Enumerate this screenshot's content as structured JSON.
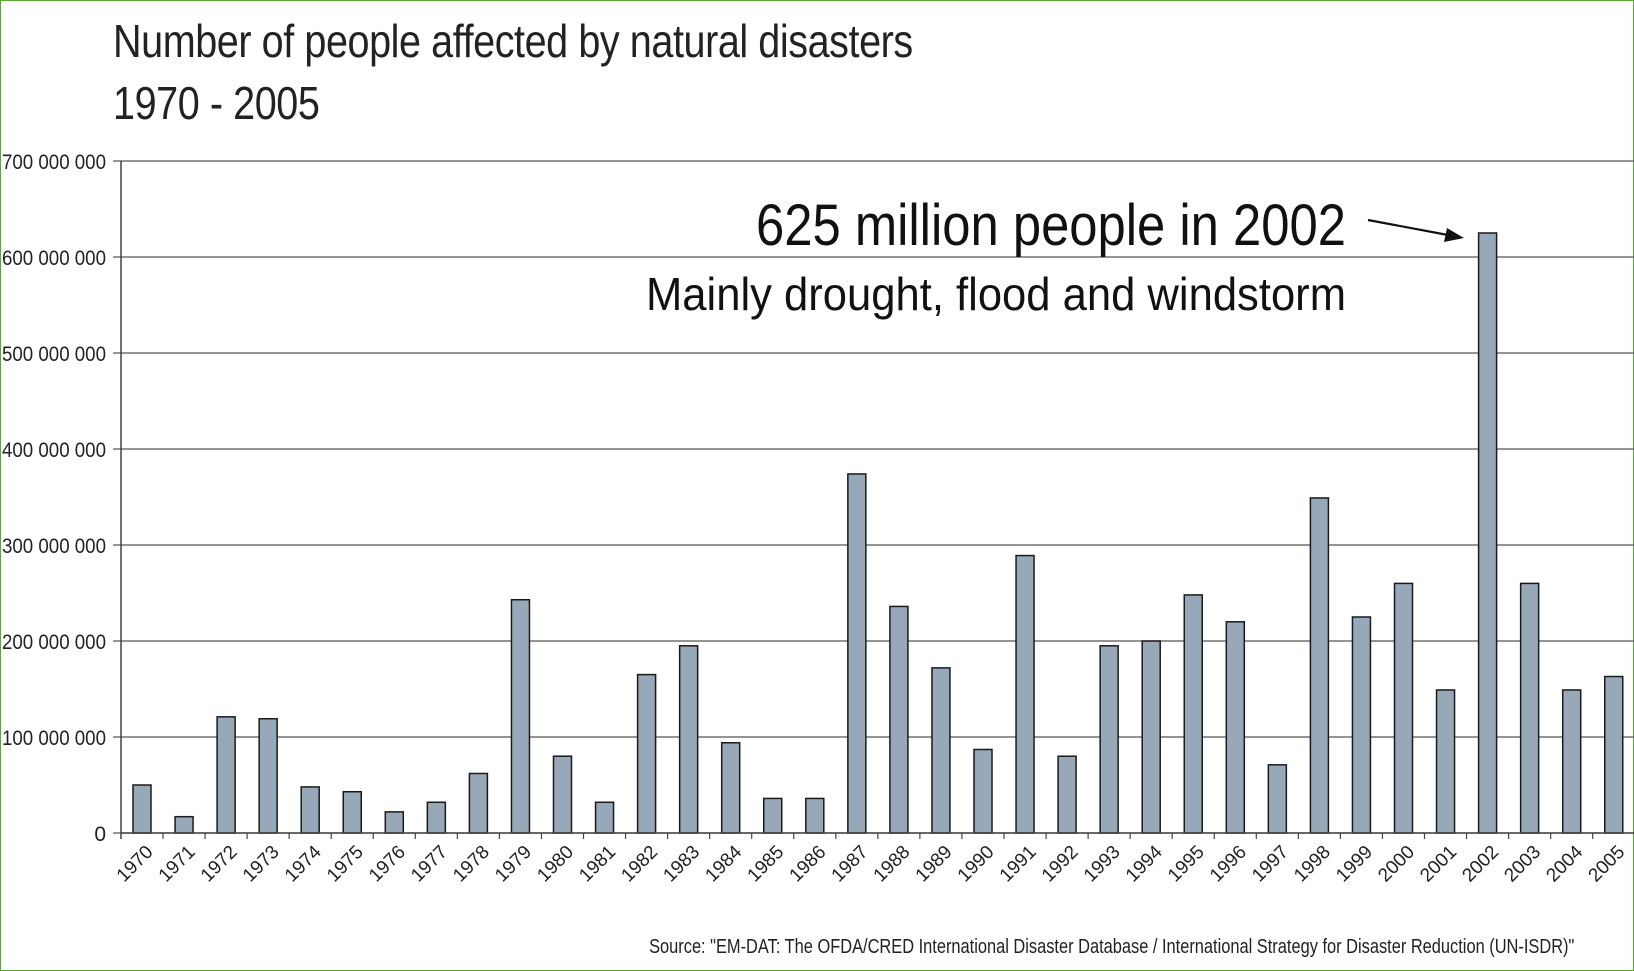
{
  "colors": {
    "bar_fill": "#97a8b8",
    "bar_stroke": "#1a1a1a",
    "grid": "#555555",
    "frame": "#5aa832",
    "text": "#222222"
  },
  "chart_data": {
    "type": "bar",
    "title": "Number of people affected by natural disasters",
    "subtitle": "1970 - 2005",
    "xlabel": "",
    "ylabel": "",
    "ylim": [
      0,
      700000000
    ],
    "yticks": [
      0,
      100000000,
      200000000,
      300000000,
      400000000,
      500000000,
      600000000,
      700000000
    ],
    "ytick_labels": [
      "0",
      "100 000 000",
      "200 000 000",
      "300 000 000",
      "400 000 000",
      "500 000 000",
      "600 000 000",
      "700 000 000"
    ],
    "grid": true,
    "legend": "none",
    "categories": [
      "1970",
      "1971",
      "1972",
      "1973",
      "1974",
      "1975",
      "1976",
      "1977",
      "1978",
      "1979",
      "1980",
      "1981",
      "1982",
      "1983",
      "1984",
      "1985",
      "1986",
      "1987",
      "1988",
      "1989",
      "1990",
      "1991",
      "1992",
      "1993",
      "1994",
      "1995",
      "1996",
      "1997",
      "1998",
      "1999",
      "2000",
      "2001",
      "2002",
      "2003",
      "2004",
      "2005"
    ],
    "values": [
      50000000,
      17000000,
      121000000,
      119000000,
      48000000,
      43000000,
      22000000,
      32000000,
      62000000,
      243000000,
      80000000,
      32000000,
      165000000,
      195000000,
      94000000,
      36000000,
      36000000,
      374000000,
      236000000,
      172000000,
      87000000,
      289000000,
      80000000,
      195000000,
      200000000,
      248000000,
      220000000,
      71000000,
      349000000,
      225000000,
      260000000,
      149000000,
      625000000,
      260000000,
      149000000,
      163000000
    ],
    "annotation": {
      "headline": "625 million people in 2002",
      "detail": "Mainly drought, flood and windstorm",
      "target_category": "2002"
    },
    "source": "Source:  \"EM-DAT: The OFDA/CRED International Disaster Database / International Strategy for Disaster Reduction (UN-ISDR)\""
  }
}
